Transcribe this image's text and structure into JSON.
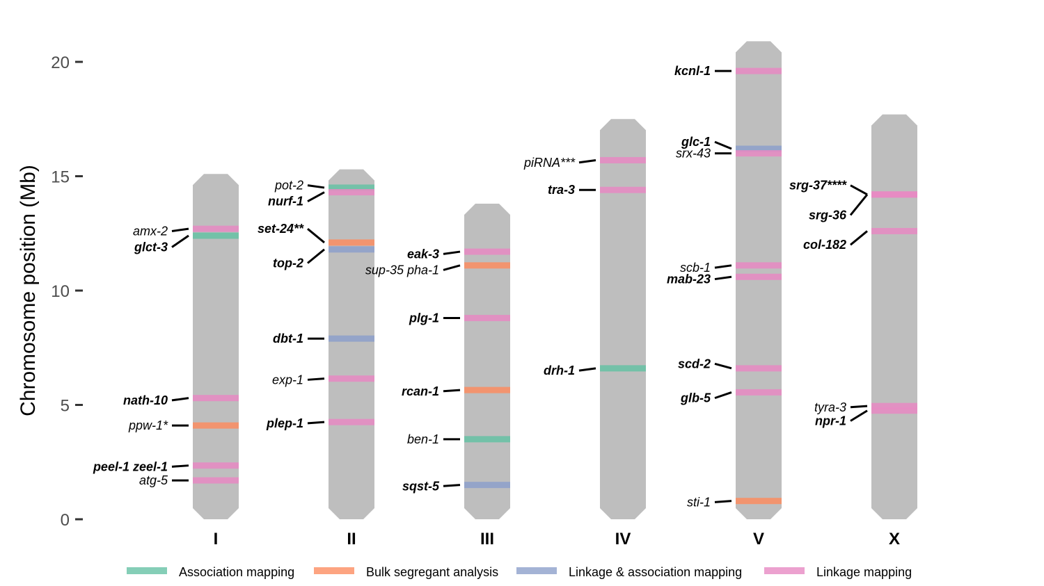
{
  "chart_data": {
    "type": "ideogram",
    "ylabel": "Chromosome position (Mb)",
    "ylim": [
      0,
      20.8
    ],
    "yticks": [
      0,
      5,
      10,
      15,
      20
    ],
    "grid": false,
    "legend_position": "bottom",
    "categories": [
      "Association mapping",
      "Bulk segregant analysis",
      "Linkage & association mapping",
      "Linkage mapping"
    ],
    "colors": {
      "Association mapping": "#66c2a5",
      "Bulk segregant analysis": "#fc8d62",
      "Linkage & association mapping": "#8da0cb",
      "Linkage mapping": "#e78ac3",
      "chromosome": "#bebebe"
    },
    "chromosomes": [
      {
        "name": "I",
        "start": 0.0,
        "end": 15.1
      },
      {
        "name": "II",
        "start": 0.0,
        "end": 15.3
      },
      {
        "name": "III",
        "start": 0.0,
        "end": 13.8
      },
      {
        "name": "IV",
        "start": 0.0,
        "end": 17.5
      },
      {
        "name": "V",
        "start": 0.0,
        "end": 20.9
      },
      {
        "name": "X",
        "start": 0.0,
        "end": 17.7
      }
    ],
    "genes": [
      {
        "chrom": "I",
        "name": "amx-2",
        "pos": 12.7,
        "category": "Linkage mapping",
        "bold": false,
        "label_pos": 12.6
      },
      {
        "chrom": "I",
        "name": "glct-3",
        "pos": 12.4,
        "category": "Association mapping",
        "bold": true,
        "label_pos": 11.9
      },
      {
        "chrom": "I",
        "name": "nath-10",
        "pos": 5.3,
        "category": "Linkage mapping",
        "bold": true,
        "label_pos": 5.2
      },
      {
        "chrom": "I",
        "name": "ppw-1*",
        "pos": 4.1,
        "category": "Bulk segregant analysis",
        "bold": false,
        "label_pos": 4.1
      },
      {
        "chrom": "I",
        "name": "peel-1 zeel-1",
        "pos": 2.35,
        "category": "Linkage mapping",
        "bold": true,
        "label_pos": 2.3
      },
      {
        "chrom": "I",
        "name": "atg-5",
        "pos": 1.7,
        "category": "Linkage mapping",
        "bold": false,
        "label_pos": 1.7
      },
      {
        "chrom": "II",
        "name": "pot-2",
        "pos": 14.5,
        "category": "Association mapping",
        "bold": false,
        "label_pos": 14.6
      },
      {
        "chrom": "II",
        "name": "nurf-1",
        "pos": 14.3,
        "category": "Linkage mapping",
        "bold": true,
        "label_pos": 13.9
      },
      {
        "chrom": "II",
        "name": "set-24**",
        "pos": 12.1,
        "category": "Bulk segregant analysis",
        "bold": true,
        "label_pos": 12.7
      },
      {
        "chrom": "II",
        "name": "top-2",
        "pos": 11.8,
        "category": "Linkage & association mapping",
        "bold": true,
        "label_pos": 11.2
      },
      {
        "chrom": "II",
        "name": "dbt-1",
        "pos": 7.9,
        "category": "Linkage & association mapping",
        "bold": true,
        "label_pos": 7.9
      },
      {
        "chrom": "II",
        "name": "exp-1",
        "pos": 6.15,
        "category": "Linkage mapping",
        "bold": false,
        "label_pos": 6.1
      },
      {
        "chrom": "II",
        "name": "plep-1",
        "pos": 4.25,
        "category": "Linkage mapping",
        "bold": true,
        "label_pos": 4.2
      },
      {
        "chrom": "III",
        "name": "eak-3",
        "pos": 11.7,
        "category": "Linkage mapping",
        "bold": true,
        "label_pos": 11.6
      },
      {
        "chrom": "III",
        "name": "sup-35 pha-1",
        "pos": 11.1,
        "category": "Bulk segregant analysis",
        "bold": false,
        "label_pos": 10.9
      },
      {
        "chrom": "III",
        "name": "plg-1",
        "pos": 8.8,
        "category": "Linkage mapping",
        "bold": true,
        "label_pos": 8.8
      },
      {
        "chrom": "III",
        "name": "rcan-1",
        "pos": 5.65,
        "category": "Bulk segregant analysis",
        "bold": true,
        "label_pos": 5.6
      },
      {
        "chrom": "III",
        "name": "ben-1",
        "pos": 3.5,
        "category": "Association mapping",
        "bold": false,
        "label_pos": 3.5
      },
      {
        "chrom": "III",
        "name": "sqst-5",
        "pos": 1.5,
        "category": "Linkage & association mapping",
        "bold": true,
        "label_pos": 1.45
      },
      {
        "chrom": "IV",
        "name": "piRNA***",
        "pos": 15.7,
        "category": "Linkage mapping",
        "bold": false,
        "label_pos": 15.6
      },
      {
        "chrom": "IV",
        "name": "tra-3",
        "pos": 14.4,
        "category": "Linkage mapping",
        "bold": true,
        "label_pos": 14.4
      },
      {
        "chrom": "IV",
        "name": "drh-1",
        "pos": 6.6,
        "category": "Association mapping",
        "bold": true,
        "label_pos": 6.5
      },
      {
        "chrom": "V",
        "name": "kcnl-1",
        "pos": 19.6,
        "category": "Linkage mapping",
        "bold": true,
        "label_pos": 19.6
      },
      {
        "chrom": "V",
        "name": "glc-1",
        "pos": 16.2,
        "category": "Linkage & association mapping",
        "bold": true,
        "label_pos": 16.5
      },
      {
        "chrom": "V",
        "name": "srx-43",
        "pos": 16.0,
        "category": "Linkage mapping",
        "bold": false,
        "label_pos": 16.0
      },
      {
        "chrom": "V",
        "name": "scb-1",
        "pos": 11.1,
        "category": "Linkage mapping",
        "bold": false,
        "label_pos": 11.0
      },
      {
        "chrom": "V",
        "name": "mab-23",
        "pos": 10.6,
        "category": "Linkage mapping",
        "bold": true,
        "label_pos": 10.5
      },
      {
        "chrom": "V",
        "name": "scd-2",
        "pos": 6.6,
        "category": "Linkage mapping",
        "bold": true,
        "label_pos": 6.8
      },
      {
        "chrom": "V",
        "name": "glb-5",
        "pos": 5.55,
        "category": "Linkage mapping",
        "bold": true,
        "label_pos": 5.3
      },
      {
        "chrom": "V",
        "name": "sti-1",
        "pos": 0.8,
        "category": "Bulk segregant analysis",
        "bold": false,
        "label_pos": 0.75
      },
      {
        "chrom": "X",
        "name": "srg-37****",
        "pos": 14.2,
        "category": "Linkage mapping",
        "bold": true,
        "label_pos": 14.6
      },
      {
        "chrom": "X",
        "name": "srg-36",
        "pos": 14.2,
        "category": "Linkage mapping",
        "bold": true,
        "label_pos": 13.3
      },
      {
        "chrom": "X",
        "name": "col-182",
        "pos": 12.6,
        "category": "Linkage mapping",
        "bold": true,
        "label_pos": 12.0
      },
      {
        "chrom": "X",
        "name": "tyra-3",
        "pos": 4.95,
        "category": "Linkage mapping",
        "bold": false,
        "label_pos": 4.9
      },
      {
        "chrom": "X",
        "name": "npr-1",
        "pos": 4.75,
        "category": "Linkage mapping",
        "bold": true,
        "label_pos": 4.3
      }
    ]
  }
}
